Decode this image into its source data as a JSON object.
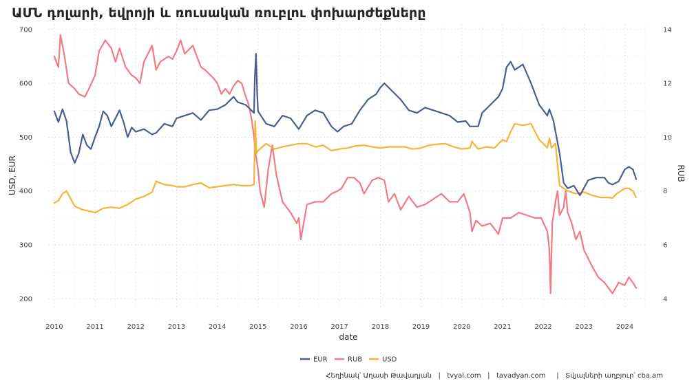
{
  "title": "ԱՄՆ դոլարի, եվրոյի և ռուսական ռուբլու փոխարժեքները",
  "caption": "Հեղինակ՝ Աղասի Թավադյան   |   tvyal.com   |   tavadyan.com     |   Տվյալների աղբյուր՝ cba.am",
  "colors": {
    "EUR": "#4a5d8c",
    "RUB": "#f07a85",
    "USD": "#f5b437"
  },
  "chart_data": {
    "type": "line",
    "xlabel": "date",
    "ylabel_left": "USD, EUR",
    "ylabel_right": "RUB",
    "xlim": [
      2009.85,
      2024.55
    ],
    "ylim_left": [
      180,
      710
    ],
    "ylim_right": [
      3.6,
      14.2
    ],
    "x_ticks": [
      "2010",
      "2011",
      "2012",
      "2013",
      "2014",
      "2015",
      "2016",
      "2017",
      "2018",
      "2019",
      "2020",
      "2021",
      "2022",
      "2023",
      "2024"
    ],
    "y_left_ticks": [
      "200",
      "300",
      "400",
      "500",
      "600",
      "700"
    ],
    "y_right_ticks": [
      "4",
      "6",
      "8",
      "10",
      "12",
      "14"
    ],
    "legend_position": "bottom",
    "grid": true,
    "series": [
      {
        "name": "EUR",
        "axis": "left",
        "x": [
          2010.0,
          2010.1,
          2010.2,
          2010.3,
          2010.4,
          2010.5,
          2010.6,
          2010.7,
          2010.8,
          2010.9,
          2011.0,
          2011.1,
          2011.2,
          2011.3,
          2011.4,
          2011.5,
          2011.6,
          2011.7,
          2011.8,
          2011.9,
          2012.0,
          2012.2,
          2012.4,
          2012.5,
          2012.7,
          2012.9,
          2013.0,
          2013.2,
          2013.4,
          2013.6,
          2013.8,
          2014.0,
          2014.2,
          2014.4,
          2014.5,
          2014.7,
          2014.9,
          2014.92,
          2014.95,
          2014.98,
          2015.0,
          2015.2,
          2015.4,
          2015.6,
          2015.8,
          2016.0,
          2016.2,
          2016.4,
          2016.6,
          2016.8,
          2016.95,
          2017.1,
          2017.3,
          2017.5,
          2017.7,
          2017.9,
          2018.0,
          2018.1,
          2018.3,
          2018.5,
          2018.7,
          2018.9,
          2019.1,
          2019.3,
          2019.5,
          2019.7,
          2019.9,
          2020.1,
          2020.2,
          2020.4,
          2020.5,
          2020.7,
          2020.9,
          2021.0,
          2021.1,
          2021.2,
          2021.3,
          2021.5,
          2021.7,
          2021.9,
          2022.0,
          2022.1,
          2022.15,
          2022.25,
          2022.4,
          2022.5,
          2022.6,
          2022.75,
          2022.9,
          2023.1,
          2023.3,
          2023.5,
          2023.6,
          2023.7,
          2023.85,
          2024.0,
          2024.1,
          2024.2,
          2024.28
        ],
        "values": [
          548,
          528,
          552,
          530,
          472,
          452,
          470,
          505,
          485,
          478,
          500,
          520,
          548,
          540,
          520,
          535,
          550,
          528,
          500,
          518,
          510,
          515,
          505,
          508,
          525,
          520,
          535,
          540,
          545,
          532,
          550,
          552,
          560,
          575,
          565,
          560,
          545,
          610,
          655,
          580,
          548,
          525,
          520,
          540,
          535,
          515,
          540,
          550,
          545,
          520,
          510,
          520,
          525,
          550,
          570,
          580,
          592,
          600,
          585,
          570,
          550,
          545,
          555,
          550,
          545,
          540,
          528,
          530,
          520,
          520,
          545,
          560,
          575,
          590,
          630,
          640,
          625,
          635,
          600,
          560,
          550,
          540,
          552,
          530,
          470,
          415,
          405,
          410,
          392,
          420,
          425,
          425,
          415,
          412,
          418,
          440,
          445,
          440,
          422
        ]
      },
      {
        "name": "RUB",
        "axis": "right",
        "x": [
          2010.0,
          2010.1,
          2010.15,
          2010.25,
          2010.35,
          2010.5,
          2010.6,
          2010.75,
          2010.85,
          2011.0,
          2011.1,
          2011.25,
          2011.4,
          2011.5,
          2011.6,
          2011.75,
          2011.9,
          2012.0,
          2012.1,
          2012.2,
          2012.4,
          2012.5,
          2012.6,
          2012.8,
          2012.9,
          2013.0,
          2013.1,
          2013.2,
          2013.4,
          2013.5,
          2013.6,
          2013.7,
          2013.9,
          2014.0,
          2014.1,
          2014.2,
          2014.3,
          2014.4,
          2014.5,
          2014.6,
          2014.7,
          2014.75,
          2014.8,
          2014.85,
          2014.9,
          2014.95,
          2015.0,
          2015.05,
          2015.15,
          2015.25,
          2015.35,
          2015.45,
          2015.6,
          2015.8,
          2015.95,
          2016.0,
          2016.05,
          2016.2,
          2016.4,
          2016.6,
          2016.8,
          2016.95,
          2017.05,
          2017.2,
          2017.35,
          2017.5,
          2017.6,
          2017.8,
          2017.95,
          2018.1,
          2018.2,
          2018.35,
          2018.5,
          2018.7,
          2018.9,
          2019.1,
          2019.3,
          2019.5,
          2019.7,
          2019.9,
          2020.05,
          2020.2,
          2020.25,
          2020.35,
          2020.5,
          2020.7,
          2020.9,
          2021.0,
          2021.2,
          2021.4,
          2021.6,
          2021.8,
          2021.95,
          2022.1,
          2022.15,
          2022.18,
          2022.22,
          2022.3,
          2022.35,
          2022.4,
          2022.5,
          2022.55,
          2022.6,
          2022.7,
          2022.8,
          2022.9,
          2023.0,
          2023.1,
          2023.2,
          2023.35,
          2023.5,
          2023.6,
          2023.7,
          2023.85,
          2024.0,
          2024.1,
          2024.2,
          2024.28
        ],
        "values": [
          13.0,
          12.6,
          13.8,
          13.0,
          12.0,
          11.8,
          11.6,
          11.5,
          11.8,
          12.3,
          13.2,
          13.6,
          13.3,
          12.8,
          13.3,
          12.6,
          12.3,
          12.2,
          12.0,
          12.8,
          13.4,
          12.5,
          12.8,
          13.0,
          12.9,
          13.2,
          13.6,
          13.1,
          13.4,
          13.0,
          12.6,
          12.5,
          12.2,
          12.0,
          11.6,
          11.8,
          11.6,
          11.9,
          12.1,
          12.0,
          11.5,
          11.3,
          11.0,
          10.6,
          10.0,
          9.3,
          8.8,
          8.0,
          7.4,
          8.8,
          9.7,
          8.6,
          7.6,
          7.2,
          6.8,
          7.0,
          6.2,
          7.5,
          7.6,
          7.6,
          7.9,
          8.0,
          8.1,
          8.5,
          8.5,
          8.3,
          7.9,
          8.4,
          8.5,
          8.4,
          7.6,
          7.9,
          7.3,
          7.8,
          7.4,
          7.5,
          7.7,
          7.9,
          7.6,
          7.6,
          7.9,
          7.2,
          6.5,
          6.9,
          6.7,
          6.8,
          6.4,
          7.0,
          7.0,
          7.2,
          7.1,
          7.0,
          7.0,
          6.5,
          5.8,
          4.2,
          6.8,
          7.6,
          8.0,
          7.1,
          7.4,
          8.0,
          7.2,
          6.8,
          6.2,
          6.5,
          5.8,
          5.5,
          5.2,
          4.8,
          4.6,
          4.4,
          4.2,
          4.6,
          4.5,
          4.8,
          4.6,
          4.4
        ]
      },
      {
        "name": "USD",
        "axis": "left",
        "x": [
          2010.0,
          2010.1,
          2010.2,
          2010.3,
          2010.5,
          2010.7,
          2010.9,
          2011.0,
          2011.2,
          2011.4,
          2011.6,
          2011.8,
          2012.0,
          2012.2,
          2012.4,
          2012.5,
          2012.7,
          2012.9,
          2013.0,
          2013.2,
          2013.4,
          2013.6,
          2013.8,
          2014.0,
          2014.2,
          2014.4,
          2014.6,
          2014.8,
          2014.9,
          2014.93,
          2014.96,
          2015.0,
          2015.2,
          2015.4,
          2015.6,
          2015.8,
          2016.0,
          2016.2,
          2016.4,
          2016.6,
          2016.8,
          2017.0,
          2017.2,
          2017.4,
          2017.6,
          2017.8,
          2018.0,
          2018.2,
          2018.4,
          2018.6,
          2018.8,
          2019.0,
          2019.2,
          2019.4,
          2019.6,
          2019.8,
          2020.0,
          2020.2,
          2020.25,
          2020.4,
          2020.6,
          2020.8,
          2021.0,
          2021.1,
          2021.2,
          2021.3,
          2021.5,
          2021.7,
          2021.9,
          2022.0,
          2022.1,
          2022.15,
          2022.2,
          2022.3,
          2022.4,
          2022.5,
          2022.6,
          2022.8,
          2023.0,
          2023.2,
          2023.4,
          2023.6,
          2023.7,
          2023.8,
          2024.0,
          2024.1,
          2024.2,
          2024.28
        ],
        "values": [
          378,
          382,
          395,
          400,
          372,
          365,
          362,
          360,
          368,
          370,
          368,
          375,
          385,
          390,
          398,
          418,
          412,
          410,
          408,
          408,
          412,
          415,
          406,
          408,
          410,
          412,
          410,
          410,
          412,
          530,
          470,
          475,
          488,
          478,
          482,
          485,
          488,
          488,
          482,
          485,
          475,
          478,
          480,
          484,
          485,
          482,
          480,
          482,
          482,
          482,
          478,
          480,
          485,
          487,
          488,
          482,
          478,
          480,
          492,
          478,
          482,
          480,
          495,
          492,
          510,
          525,
          522,
          525,
          495,
          488,
          480,
          498,
          480,
          488,
          410,
          405,
          400,
          395,
          398,
          392,
          388,
          388,
          387,
          395,
          405,
          405,
          400,
          388
        ]
      }
    ]
  }
}
